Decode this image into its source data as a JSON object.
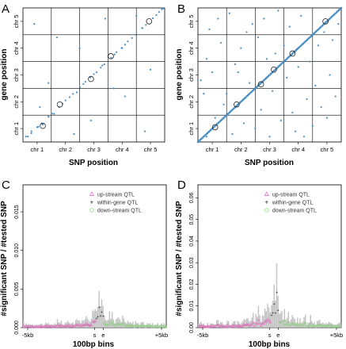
{
  "figure": {
    "panel_letters": [
      "A",
      "B",
      "C",
      "D"
    ]
  },
  "colors": {
    "point": "#4a8fc4",
    "bar": "#c4c4c4",
    "upstream": "#e05ab6",
    "within": "#222222",
    "downstream": "#80d070",
    "axis": "#000000"
  },
  "chart_data": [
    {
      "panel": "A",
      "type": "scatter",
      "xlabel": "SNP position",
      "ylabel": "gene position",
      "x_ticks": [
        "chr 1",
        "chr 2",
        "chr 3",
        "chr 4",
        "chr 5"
      ],
      "y_ticks": [
        "chr 1",
        "chr 2",
        "chr 3",
        "chr 4",
        "chr 5"
      ],
      "chromosome_bounds": [
        0,
        1,
        2,
        3,
        4,
        5
      ],
      "grid": true,
      "circles": [
        [
          0.7,
          0.6
        ],
        [
          1.3,
          1.4
        ],
        [
          2.4,
          2.35
        ],
        [
          3.1,
          3.2
        ],
        [
          4.45,
          4.5
        ]
      ],
      "points": [
        [
          0.1,
          0.2
        ],
        [
          0.3,
          0.4
        ],
        [
          0.5,
          0.55
        ],
        [
          0.7,
          0.65
        ],
        [
          0.9,
          0.95
        ],
        [
          1.1,
          1.05
        ],
        [
          1.5,
          1.55
        ],
        [
          1.9,
          1.85
        ],
        [
          2.2,
          2.25
        ],
        [
          2.6,
          2.6
        ],
        [
          2.8,
          2.85
        ],
        [
          3.3,
          3.35
        ],
        [
          3.5,
          3.5
        ],
        [
          3.7,
          3.75
        ],
        [
          4.2,
          4.25
        ],
        [
          4.8,
          4.85
        ],
        [
          4.9,
          4.95
        ],
        [
          0.6,
          1.3
        ],
        [
          0.9,
          2.2
        ],
        [
          1.2,
          3.9
        ],
        [
          2.4,
          0.8
        ],
        [
          2.9,
          4.6
        ],
        [
          3.6,
          1.7
        ],
        [
          4.3,
          0.4
        ],
        [
          4.5,
          2.7
        ],
        [
          0.4,
          4.4
        ],
        [
          1.8,
          0.3
        ],
        [
          3.2,
          2.0
        ],
        [
          2.0,
          3.5
        ],
        [
          4.0,
          4.7
        ]
      ]
    },
    {
      "panel": "B",
      "type": "scatter",
      "xlabel": "SNP position",
      "ylabel": "gene position",
      "x_ticks": [
        "chr 1",
        "chr 2",
        "chr 3",
        "chr 4",
        "chr 5"
      ],
      "y_ticks": [
        "chr 1",
        "chr 2",
        "chr 3",
        "chr 4",
        "chr 5"
      ],
      "chromosome_bounds": [
        0,
        1,
        2,
        3,
        4,
        5
      ],
      "grid": true,
      "circles": [
        [
          0.6,
          0.55
        ],
        [
          1.35,
          1.4
        ],
        [
          2.2,
          2.15
        ],
        [
          2.65,
          2.7
        ],
        [
          3.3,
          3.3
        ],
        [
          4.45,
          4.5
        ]
      ],
      "diagonal_dense": true,
      "points": [
        [
          0.2,
          1.8
        ],
        [
          0.3,
          3.1
        ],
        [
          0.4,
          4.2
        ],
        [
          0.5,
          2.6
        ],
        [
          0.6,
          0.9
        ],
        [
          0.8,
          3.7
        ],
        [
          0.9,
          1.4
        ],
        [
          1.1,
          4.8
        ],
        [
          1.2,
          0.3
        ],
        [
          1.3,
          2.9
        ],
        [
          1.5,
          3.5
        ],
        [
          1.6,
          0.7
        ],
        [
          1.7,
          4.1
        ],
        [
          1.8,
          2.2
        ],
        [
          2.0,
          0.5
        ],
        [
          2.1,
          3.9
        ],
        [
          2.2,
          1.2
        ],
        [
          2.3,
          4.6
        ],
        [
          2.5,
          0.2
        ],
        [
          2.6,
          1.9
        ],
        [
          2.7,
          3.3
        ],
        [
          2.8,
          4.9
        ],
        [
          2.9,
          0.8
        ],
        [
          3.1,
          2.4
        ],
        [
          3.2,
          4.3
        ],
        [
          3.3,
          1.1
        ],
        [
          3.4,
          0.4
        ],
        [
          3.5,
          2.8
        ],
        [
          3.6,
          4.7
        ],
        [
          3.8,
          1.6
        ],
        [
          3.9,
          3.0
        ],
        [
          4.0,
          0.6
        ],
        [
          4.1,
          2.1
        ],
        [
          4.2,
          3.6
        ],
        [
          4.3,
          1.3
        ],
        [
          4.5,
          0.9
        ],
        [
          4.6,
          2.5
        ],
        [
          4.7,
          3.8
        ],
        [
          4.8,
          1.7
        ],
        [
          4.9,
          4.4
        ],
        [
          0.7,
          4.6
        ],
        [
          1.9,
          4.4
        ],
        [
          3.7,
          0.2
        ],
        [
          4.4,
          4.1
        ],
        [
          0.1,
          2.3
        ],
        [
          1.0,
          1.8
        ],
        [
          2.4,
          3.1
        ],
        [
          3.0,
          3.6
        ],
        [
          0.3,
          0.2
        ],
        [
          1.4,
          2.6
        ]
      ]
    },
    {
      "panel": "C",
      "type": "bar",
      "xlabel": "100bp bins",
      "ylabel": "#significant SNP / #tested SNP",
      "x_tick_labels": [
        "-5kb",
        "s",
        "e",
        "+5kb"
      ],
      "y_ticks": [
        0.0,
        0.005,
        0.01,
        0.015
      ],
      "ylim": [
        0,
        0.0185
      ],
      "legend": {
        "placement": "top-right",
        "entries": [
          "up-stream QTL",
          "within-gene QTL",
          "down-stream QTL"
        ]
      }
    },
    {
      "panel": "D",
      "type": "bar",
      "xlabel": "100bp bins",
      "ylabel": "#significant SNP / #tested SNP",
      "x_tick_labels": [
        "-5kb",
        "s",
        "e",
        "+5kb"
      ],
      "y_ticks": [
        0.0,
        0.01,
        0.02,
        0.03,
        0.04,
        0.05,
        0.06
      ],
      "ylim": [
        0,
        0.066
      ],
      "legend": {
        "placement": "top-right",
        "entries": [
          "up-stream QTL",
          "within-gene QTL",
          "down-stream QTL"
        ]
      }
    }
  ]
}
